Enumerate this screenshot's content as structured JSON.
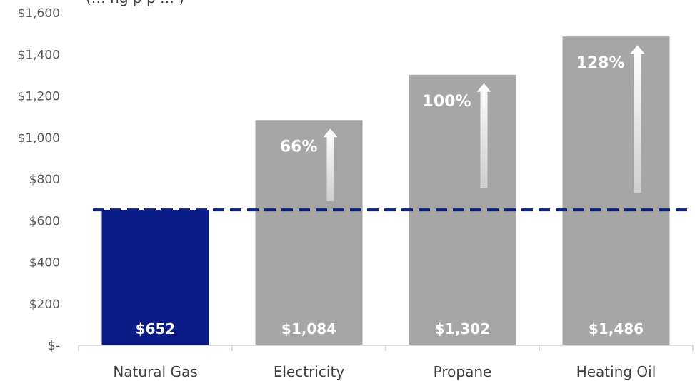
{
  "chart_data": {
    "type": "bar",
    "title_fragment": "(… ng   p      p …                                   )",
    "categories": [
      "Natural Gas",
      "Electricity",
      "Propane",
      "Heating Oil"
    ],
    "values": [
      652,
      1084,
      1302,
      1486
    ],
    "value_labels": [
      "$652",
      "$1,084",
      "$1,302",
      "$1,486"
    ],
    "increase_labels": [
      "",
      "66%",
      "100%",
      "128%"
    ],
    "ylim": [
      0,
      1600
    ],
    "yticks": [
      0,
      200,
      400,
      600,
      800,
      1000,
      1200,
      1400,
      1600
    ],
    "ytick_labels": [
      "$-",
      "$200",
      "$400",
      "$600",
      "$800",
      "$1,000",
      "$1,200",
      "$1,400",
      "$1,600"
    ],
    "reference_line": {
      "value": 652,
      "style": "dashed",
      "color": "#0b1f7a"
    },
    "colors": {
      "highlight": "#0a1a86",
      "other": "#a6a6a6",
      "arrow": "#ffffff"
    },
    "grid": false,
    "legend": "none"
  }
}
